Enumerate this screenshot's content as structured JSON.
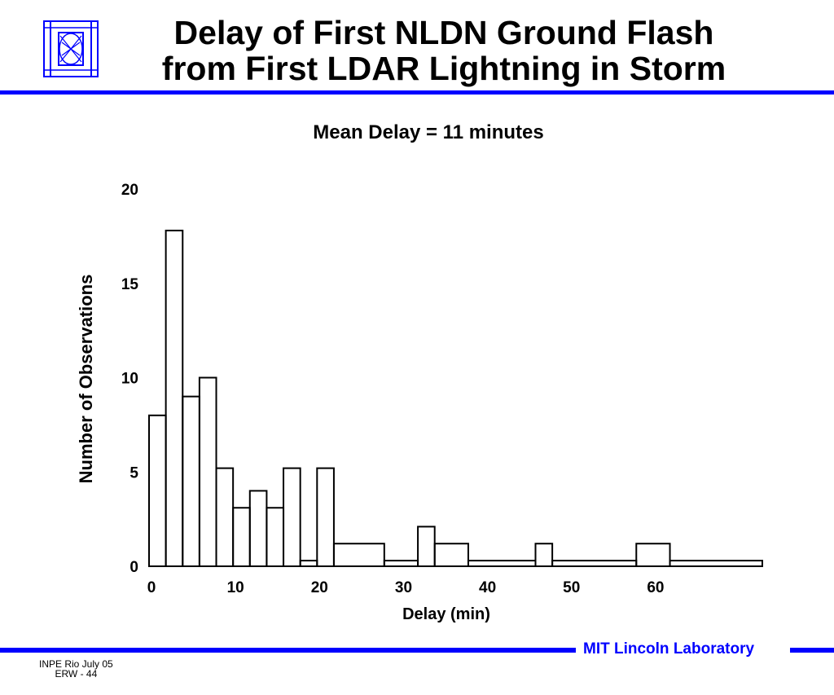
{
  "title_line1": "Delay of First NLDN Ground Flash",
  "title_line2": "from First LDAR Lightning in Storm",
  "footer": {
    "lab": "MIT Lincoln Laboratory",
    "line1": "INPE Rio  July 05",
    "line2": "ERW - 44"
  },
  "colors": {
    "accent": "#0000ff",
    "ink": "#000000"
  },
  "chart_data": {
    "type": "bar",
    "subtitle": "Mean Delay = 11 minutes",
    "xlabel": "Delay (min)",
    "ylabel": "Number of Observations",
    "xlim": [
      0,
      73
    ],
    "ylim": [
      0,
      20
    ],
    "x_ticks": [
      0,
      10,
      20,
      30,
      40,
      50,
      60
    ],
    "y_ticks": [
      0,
      5,
      10,
      15,
      20
    ],
    "grid": false,
    "bins": [
      {
        "x0": 0,
        "x1": 2,
        "count": 8
      },
      {
        "x0": 2,
        "x1": 4,
        "count": 17.8
      },
      {
        "x0": 4,
        "x1": 6,
        "count": 9
      },
      {
        "x0": 6,
        "x1": 8,
        "count": 10
      },
      {
        "x0": 8,
        "x1": 10,
        "count": 5.2
      },
      {
        "x0": 10,
        "x1": 12,
        "count": 3.1
      },
      {
        "x0": 12,
        "x1": 14,
        "count": 4
      },
      {
        "x0": 14,
        "x1": 16,
        "count": 3.1
      },
      {
        "x0": 16,
        "x1": 18,
        "count": 5.2
      },
      {
        "x0": 18,
        "x1": 20,
        "count": 0.3
      },
      {
        "x0": 20,
        "x1": 22,
        "count": 5.2
      },
      {
        "x0": 22,
        "x1": 28,
        "count": 1.2
      },
      {
        "x0": 28,
        "x1": 32,
        "count": 0.3
      },
      {
        "x0": 32,
        "x1": 34,
        "count": 2.1
      },
      {
        "x0": 34,
        "x1": 38,
        "count": 1.2
      },
      {
        "x0": 38,
        "x1": 46,
        "count": 0.3
      },
      {
        "x0": 46,
        "x1": 48,
        "count": 1.2
      },
      {
        "x0": 48,
        "x1": 58,
        "count": 0.3
      },
      {
        "x0": 58,
        "x1": 62,
        "count": 1.2
      },
      {
        "x0": 62,
        "x1": 73,
        "count": 0.3
      }
    ]
  }
}
